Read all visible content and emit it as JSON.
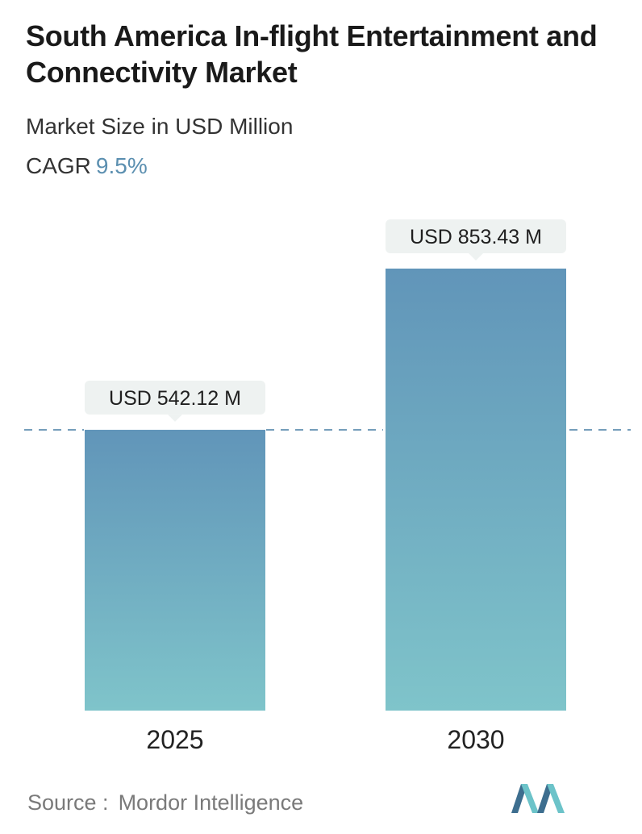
{
  "header": {
    "title": "South America In-flight Entertainment and Connectivity Market",
    "subtitle": "Market Size in USD Million",
    "cagr_label": "CAGR",
    "cagr_value": "9.5%"
  },
  "footer": {
    "source_label": "Source :",
    "source_name": "Mordor Intelligence"
  },
  "colors": {
    "bar_top": "#6195b9",
    "bar_bottom": "#7fc4ca",
    "label_bg": "#eef2f1",
    "dashed_line": "#5b8cae",
    "logo_dark": "#3d6e8f",
    "logo_light": "#6cc3c9"
  },
  "chart_data": {
    "type": "bar",
    "categories": [
      "2025",
      "2030"
    ],
    "values": [
      542.12,
      853.43
    ],
    "data_labels": [
      "USD 542.12 M",
      "USD 853.43 M"
    ],
    "reference_line": "dashed line at 2025 value",
    "grid": false
  }
}
